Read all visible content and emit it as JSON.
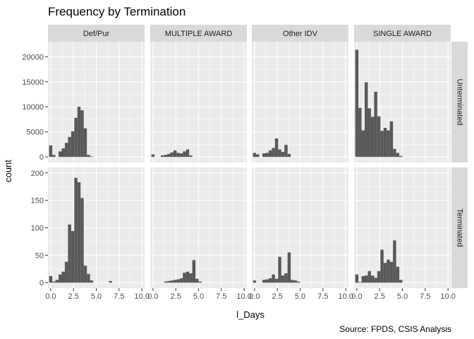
{
  "chart_data": {
    "type": "bar",
    "title": "Frequency by Termination",
    "xlabel": "l_Days",
    "ylabel": "count",
    "caption": "Source: FPDS, CSIS Analysis",
    "x_ticks": [
      "0.0",
      "2.5",
      "5.0",
      "7.5",
      "10.0"
    ],
    "xlim": [
      -0.3,
      10.3
    ],
    "bin_width": 0.345,
    "bin_centers": [
      0.0,
      0.345,
      0.69,
      1.035,
      1.38,
      1.725,
      2.07,
      2.415,
      2.76,
      3.105,
      3.45,
      3.795,
      4.14,
      4.485,
      4.83,
      5.175,
      5.52,
      5.865,
      6.21,
      6.555,
      6.9,
      7.245,
      7.59,
      7.935,
      8.28,
      8.625,
      8.97,
      9.315,
      9.66,
      10.005
    ],
    "columns": [
      "Def/Pur",
      "MULTIPLE AWARD",
      "Other IDV",
      "SINGLE AWARD"
    ],
    "rows": [
      {
        "name": "Unterminated",
        "ylim": [
          -1100,
          23000
        ],
        "y_ticks": [
          0,
          5000,
          10000,
          15000,
          20000
        ],
        "y_tick_labels": [
          "0",
          "5000",
          "10000",
          "15000",
          "20000"
        ],
        "panels": [
          [
            2300,
            400,
            0,
            1100,
            1700,
            2800,
            4000,
            5100,
            7800,
            10000,
            9300,
            5700,
            400,
            100,
            0,
            0,
            0,
            0,
            0,
            0,
            0,
            0,
            0,
            0,
            0,
            0,
            0,
            0,
            0,
            0
          ],
          [
            500,
            0,
            0,
            300,
            400,
            600,
            900,
            1300,
            800,
            700,
            1100,
            1500,
            300,
            0,
            0,
            0,
            0,
            0,
            0,
            0,
            0,
            0,
            0,
            0,
            0,
            0,
            0,
            0,
            0,
            0
          ],
          [
            800,
            500,
            0,
            700,
            800,
            1300,
            1800,
            3700,
            1500,
            1000,
            2400,
            600,
            0,
            0,
            0,
            0,
            0,
            0,
            0,
            0,
            0,
            0,
            0,
            0,
            0,
            0,
            0,
            0,
            0,
            0
          ],
          [
            21400,
            9800,
            5300,
            14900,
            9700,
            8000,
            13000,
            8100,
            5200,
            5800,
            5300,
            7100,
            1600,
            800,
            200,
            0,
            0,
            0,
            0,
            0,
            0,
            0,
            0,
            0,
            0,
            0,
            0,
            0,
            0,
            0
          ]
        ]
      },
      {
        "name": "Terminated",
        "ylim": [
          -10,
          210
        ],
        "y_ticks": [
          0,
          50,
          100,
          150,
          200
        ],
        "y_tick_labels": [
          "0",
          "50",
          "100",
          "150",
          "200"
        ],
        "panels": [
          [
            12,
            2,
            5,
            15,
            20,
            38,
            106,
            94,
            191,
            183,
            154,
            31,
            16,
            4,
            0,
            0,
            0,
            0,
            0,
            3,
            0,
            0,
            0,
            0,
            0,
            0,
            0,
            0,
            0,
            0
          ],
          [
            0,
            0,
            0,
            0,
            2,
            3,
            4,
            5,
            6,
            8,
            18,
            20,
            17,
            41,
            7,
            2,
            0,
            0,
            0,
            0,
            0,
            0,
            0,
            0,
            0,
            0,
            0,
            0,
            0,
            0
          ],
          [
            4,
            0,
            0,
            5,
            6,
            8,
            15,
            7,
            47,
            13,
            17,
            55,
            5,
            4,
            2,
            0,
            0,
            0,
            0,
            0,
            0,
            0,
            0,
            0,
            0,
            0,
            0,
            0,
            0,
            0
          ],
          [
            15,
            1,
            12,
            13,
            21,
            13,
            9,
            21,
            60,
            36,
            42,
            38,
            77,
            29,
            5,
            0,
            0,
            0,
            0,
            0,
            0,
            0,
            0,
            0,
            0,
            0,
            0,
            0,
            0,
            0
          ]
        ]
      }
    ],
    "colors": {
      "panel_background": "#ebebeb",
      "strip_background": "#d9d9d9",
      "grid_major": "#ffffff",
      "bar_fill": "#595959"
    },
    "grid": true,
    "legend": "none"
  }
}
